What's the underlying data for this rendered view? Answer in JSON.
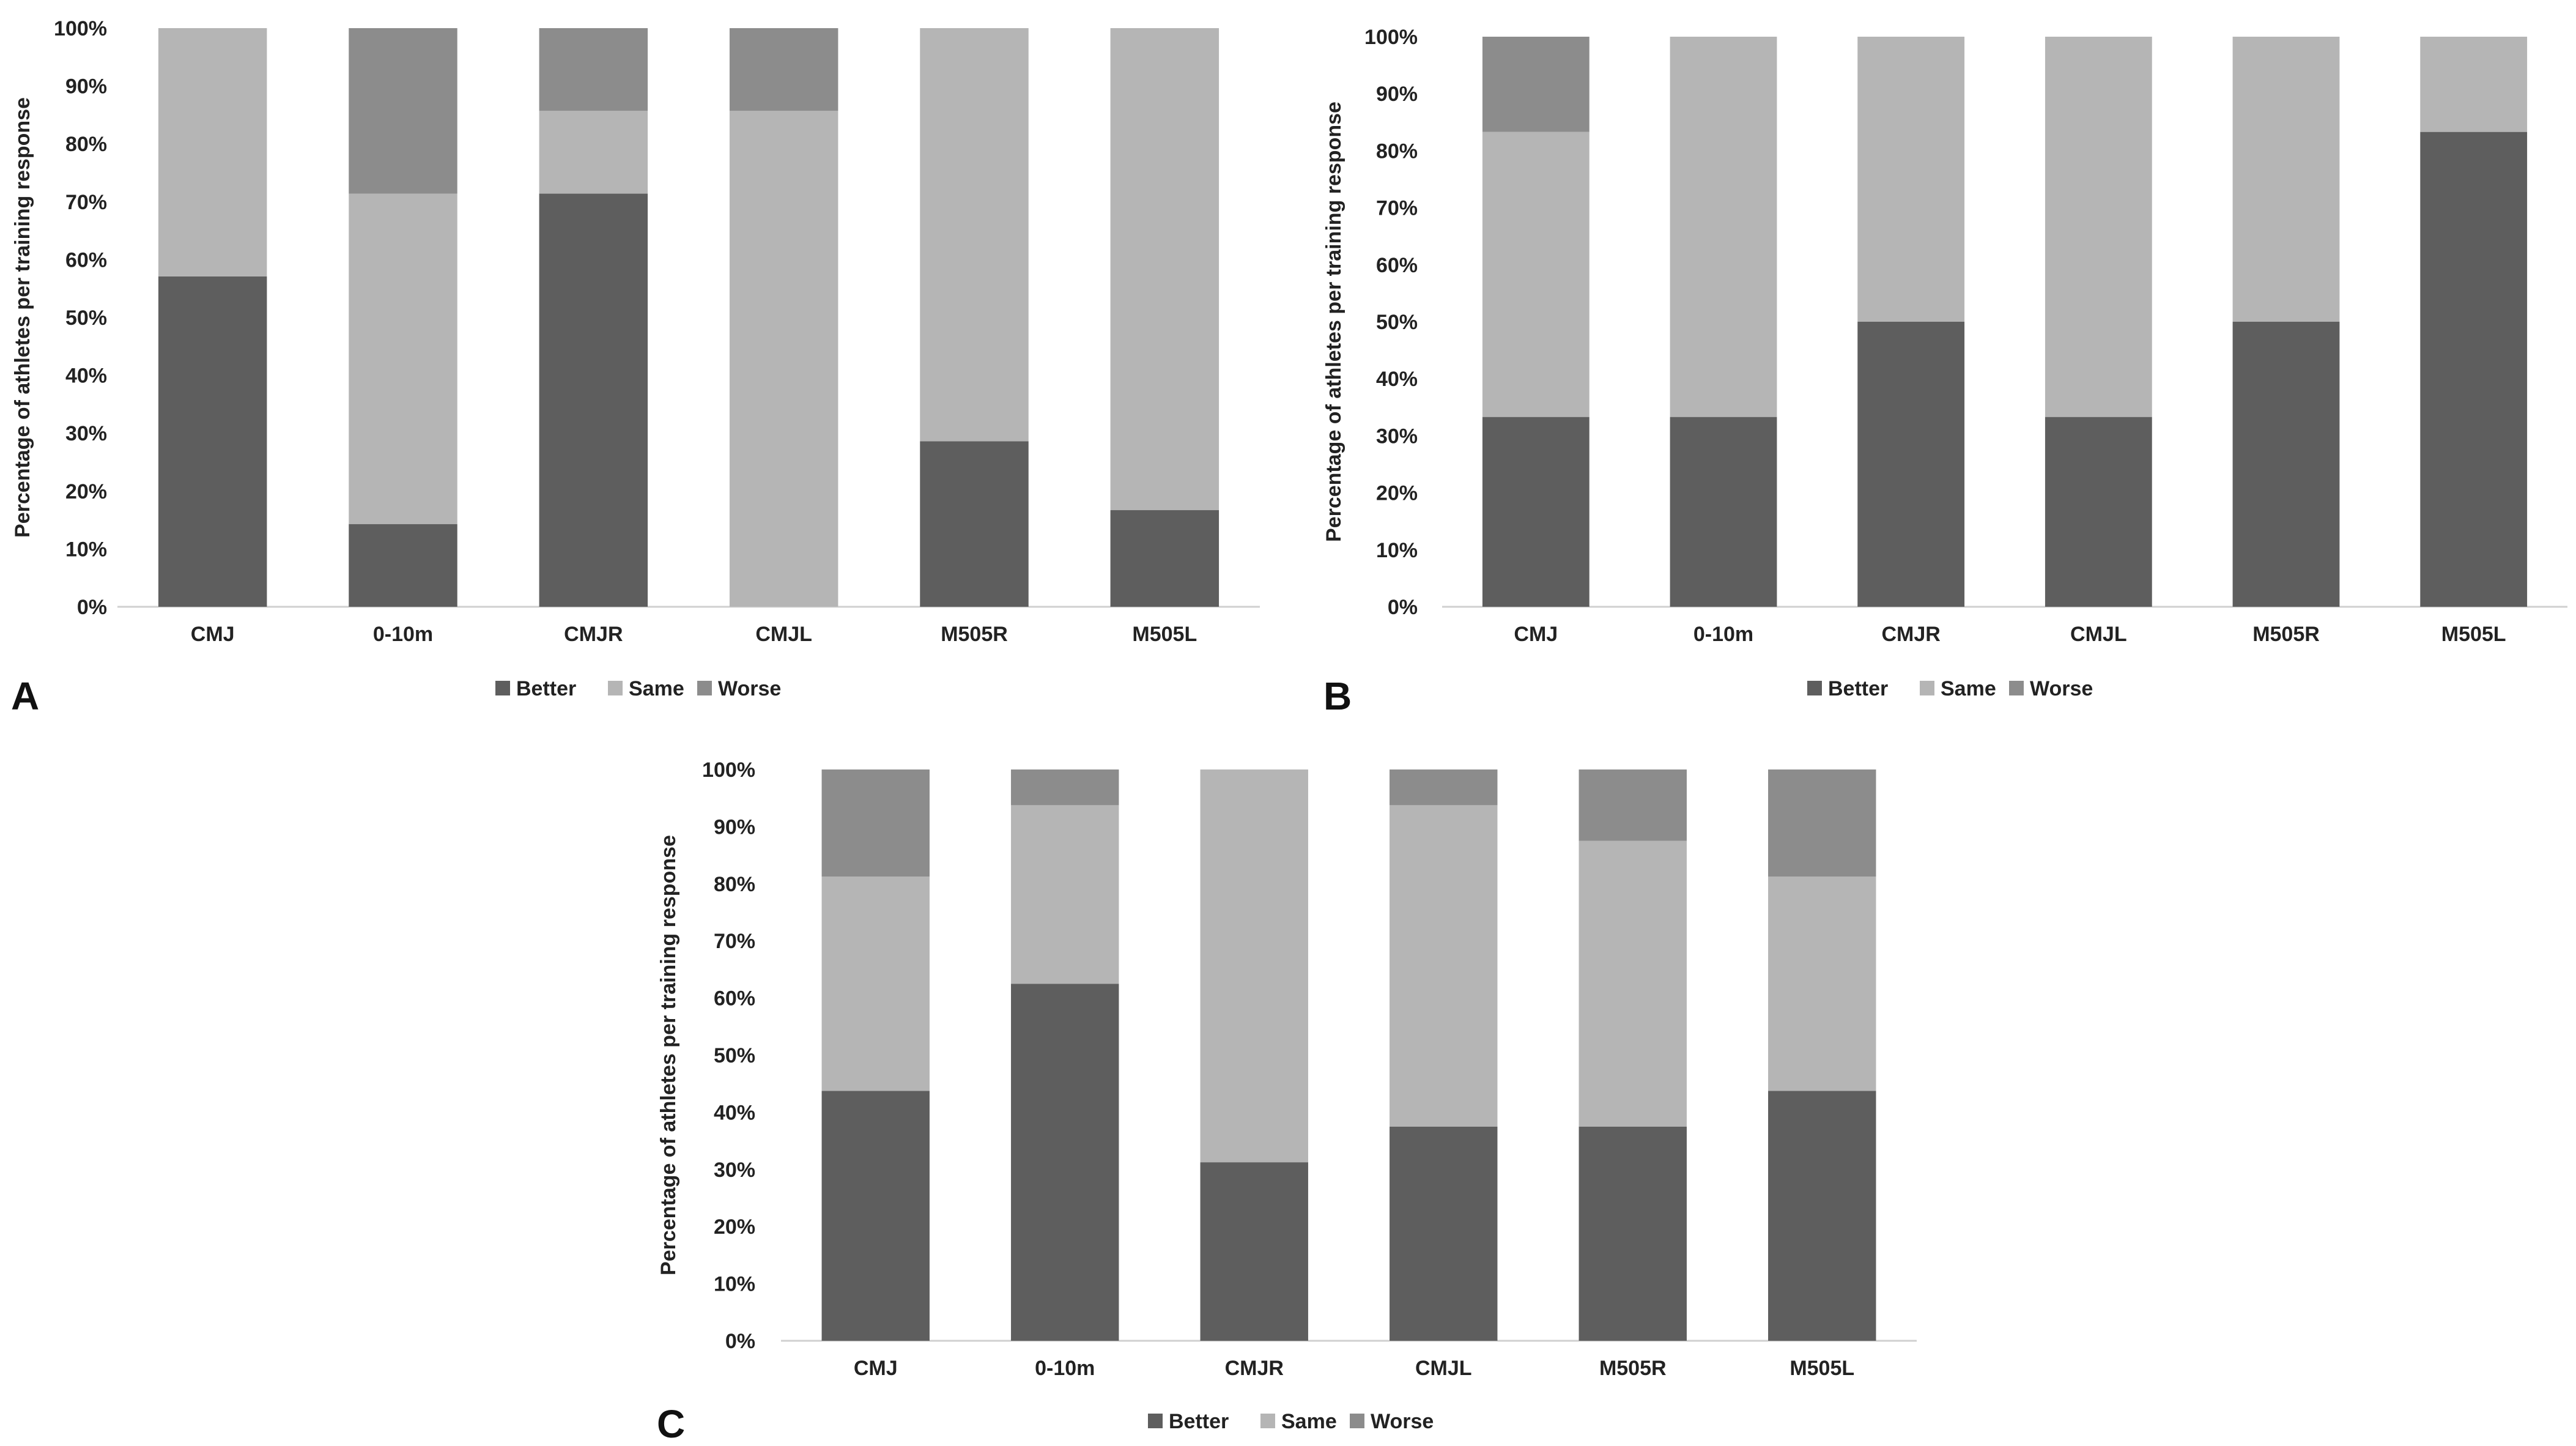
{
  "colors": {
    "Better": "#5e5e5e",
    "Same": "#b5b5b5",
    "Worse": "#8c8c8c",
    "axis": "#d0d0d0"
  },
  "chart_data": [
    {
      "panel": "A",
      "type": "bar",
      "stacked": true,
      "categories": [
        "CMJ",
        "0-10m",
        "CMJR",
        "CMJL",
        "M505R",
        "M505L"
      ],
      "series": [
        {
          "name": "Better",
          "values": [
            57.1,
            14.3,
            71.4,
            0,
            28.6,
            16.7
          ]
        },
        {
          "name": "Same",
          "values": [
            42.9,
            57.1,
            14.3,
            85.7,
            71.4,
            83.3
          ]
        },
        {
          "name": "Worse",
          "values": [
            0,
            28.6,
            14.3,
            14.3,
            0,
            0
          ]
        }
      ],
      "ylabel": "Percentage of athletes per training response",
      "xlabel": "",
      "ylim": [
        0,
        100
      ],
      "yticks": [
        "0%",
        "10%",
        "20%",
        "30%",
        "40%",
        "50%",
        "60%",
        "70%",
        "80%",
        "90%",
        "100%"
      ],
      "legend": [
        "Better",
        "Same",
        "Worse"
      ],
      "legend_position": "bottom"
    },
    {
      "panel": "B",
      "type": "bar",
      "stacked": true,
      "categories": [
        "CMJ",
        "0-10m",
        "CMJR",
        "CMJL",
        "M505R",
        "M505L"
      ],
      "series": [
        {
          "name": "Better",
          "values": [
            33.3,
            33.3,
            50,
            33.3,
            50,
            83.3
          ]
        },
        {
          "name": "Same",
          "values": [
            50,
            66.7,
            50,
            66.7,
            50,
            16.7
          ]
        },
        {
          "name": "Worse",
          "values": [
            16.7,
            0,
            0,
            0,
            0,
            0
          ]
        }
      ],
      "ylabel": "Percentage of athletes per training response",
      "xlabel": "",
      "ylim": [
        0,
        100
      ],
      "yticks": [
        "0%",
        "10%",
        "20%",
        "30%",
        "40%",
        "50%",
        "60%",
        "70%",
        "80%",
        "90%",
        "100%"
      ],
      "legend": [
        "Better",
        "Same",
        "Worse"
      ],
      "legend_position": "bottom"
    },
    {
      "panel": "C",
      "type": "bar",
      "stacked": true,
      "categories": [
        "CMJ",
        "0-10m",
        "CMJR",
        "CMJL",
        "M505R",
        "M505L"
      ],
      "series": [
        {
          "name": "Better",
          "values": [
            43.75,
            62.5,
            31.25,
            37.5,
            37.5,
            43.75
          ]
        },
        {
          "name": "Same",
          "values": [
            37.5,
            31.25,
            68.75,
            56.25,
            50,
            37.5
          ]
        },
        {
          "name": "Worse",
          "values": [
            18.75,
            6.25,
            0,
            6.25,
            12.5,
            18.75
          ]
        }
      ],
      "ylabel": "Percentage of athletes per training response",
      "xlabel": "",
      "ylim": [
        0,
        100
      ],
      "yticks": [
        "0%",
        "10%",
        "20%",
        "30%",
        "40%",
        "50%",
        "60%",
        "70%",
        "80%",
        "90%",
        "100%"
      ],
      "legend": [
        "Better",
        "Same",
        "Worse"
      ],
      "legend_position": "bottom"
    }
  ]
}
